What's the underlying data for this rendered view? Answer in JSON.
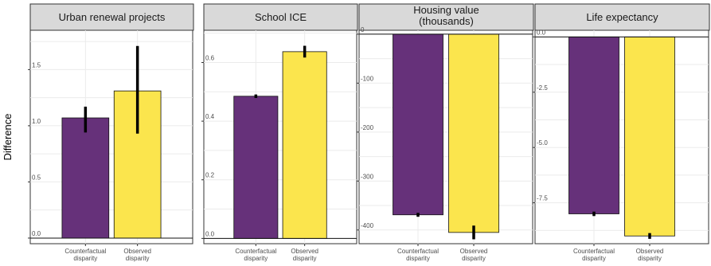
{
  "ylabel": "Difference",
  "colors": {
    "counterfactual": "#66317a",
    "observed": "#fbe54d",
    "strip": "#d9d9d9",
    "grid": "#ebebeb"
  },
  "chart_data": [
    {
      "type": "bar",
      "title": "Urban renewal projects",
      "categories": [
        "Counterfactual\ndisparity",
        "Observed\ndisparity"
      ],
      "values": [
        1.07,
        1.31
      ],
      "error_low": [
        0.94,
        0.93
      ],
      "error_high": [
        1.17,
        1.71
      ],
      "ylim": [
        -0.05,
        1.85
      ],
      "yticks": [
        0.0,
        0.5,
        1.0,
        1.5
      ],
      "ytick_labels": [
        "0.0",
        "0.5",
        "1.0",
        "1.5"
      ],
      "grid": true
    },
    {
      "type": "bar",
      "title": "School ICE",
      "categories": [
        "Counterfactual\ndisparity",
        "Observed\ndisparity"
      ],
      "values": [
        0.485,
        0.637
      ],
      "error_low": [
        0.479,
        0.617
      ],
      "error_high": [
        0.491,
        0.657
      ],
      "ylim": [
        -0.018,
        0.71
      ],
      "yticks": [
        0.0,
        0.2,
        0.4,
        0.6
      ],
      "ytick_labels": [
        "0.0",
        "0.2",
        "0.4",
        "0.6"
      ],
      "grid": true
    },
    {
      "type": "bar",
      "title": "Housing value\n(thousands)",
      "categories": [
        "Counterfactual\ndisparity",
        "Observed\ndisparity"
      ],
      "values": [
        -369,
        -405
      ],
      "error_low": [
        -373,
        -419
      ],
      "error_high": [
        -365,
        -391
      ],
      "ylim": [
        -428,
        8
      ],
      "yticks": [
        0,
        -100,
        -200,
        -300,
        -400
      ],
      "ytick_labels": [
        "0",
        "-100",
        "-200",
        "-300",
        "-400"
      ],
      "grid": true
    },
    {
      "type": "bar",
      "title": "Life expectancy",
      "categories": [
        "Counterfactual\ndisparity",
        "Observed\ndisparity"
      ],
      "values": [
        -8.0,
        -9.0
      ],
      "error_low": [
        -8.1,
        -9.13
      ],
      "error_high": [
        -7.9,
        -8.87
      ],
      "ylim": [
        -9.35,
        0.3
      ],
      "yticks": [
        0.0,
        -2.5,
        -5.0,
        -7.5
      ],
      "ytick_labels": [
        "0.0",
        "-2.5",
        "-5.0",
        "-7.5"
      ],
      "grid": true
    }
  ]
}
